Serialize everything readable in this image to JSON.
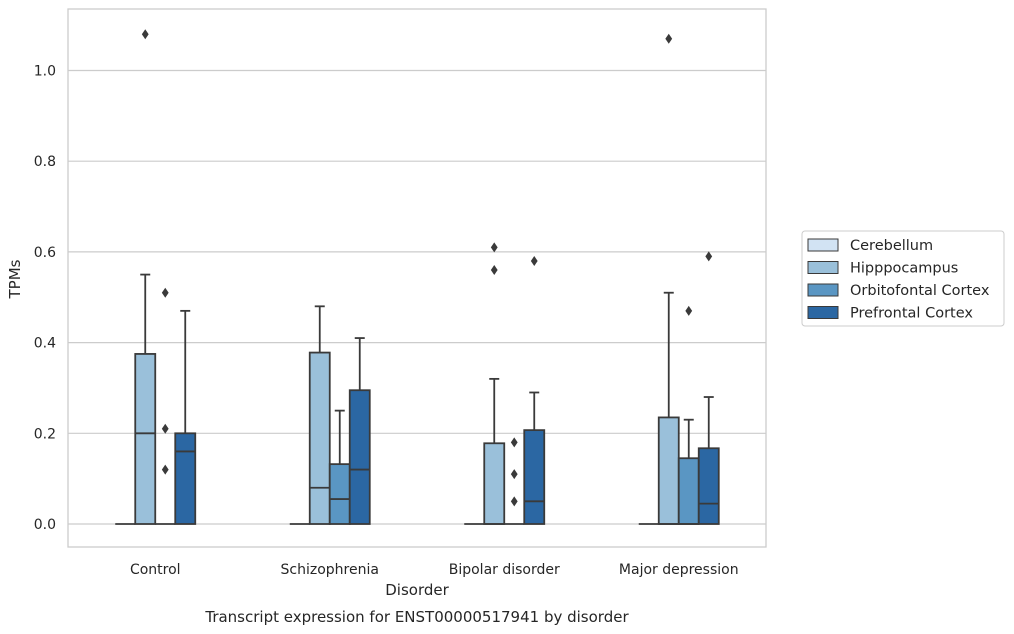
{
  "chart_data": {
    "type": "box",
    "caption": "Transcript expression for ENST00000517941 by disorder",
    "xlabel": "Disorder",
    "ylabel": "TPMs",
    "ylim": [
      -0.05,
      1.14
    ],
    "yticks": [
      0.0,
      0.2,
      0.4,
      0.6,
      0.8,
      1.0
    ],
    "ytick_labels": [
      "0.0",
      "0.2",
      "0.4",
      "0.6",
      "0.8",
      "1.0"
    ],
    "grid": "horizontal",
    "legend_position": "right",
    "categories": [
      "Control",
      "Schizophrenia",
      "Bipolar disorder",
      "Major depression"
    ],
    "series": [
      {
        "name": "Cerebellum",
        "color": "#d2e3f3",
        "boxes": [
          {
            "whislo": 0.0,
            "q1": 0.0,
            "med": 0.0,
            "q3": 0.0,
            "whishi": 0.0,
            "fliers": []
          },
          {
            "whislo": 0.0,
            "q1": 0.0,
            "med": 0.0,
            "q3": 0.0,
            "whishi": 0.0,
            "fliers": []
          },
          {
            "whislo": 0.0,
            "q1": 0.0,
            "med": 0.0,
            "q3": 0.0,
            "whishi": 0.0,
            "fliers": []
          },
          {
            "whislo": 0.0,
            "q1": 0.0,
            "med": 0.0,
            "q3": 0.0,
            "whishi": 0.0,
            "fliers": []
          }
        ]
      },
      {
        "name": "Hipppocampus",
        "color": "#9ac0da",
        "boxes": [
          {
            "whislo": 0.0,
            "q1": 0.0,
            "med": 0.2,
            "q3": 0.375,
            "whishi": 0.55,
            "fliers": [
              1.08
            ]
          },
          {
            "whislo": 0.0,
            "q1": 0.0,
            "med": 0.08,
            "q3": 0.378,
            "whishi": 0.48,
            "fliers": []
          },
          {
            "whislo": 0.0,
            "q1": 0.0,
            "med": 0.0,
            "q3": 0.178,
            "whishi": 0.32,
            "fliers": [
              0.56,
              0.61
            ]
          },
          {
            "whislo": 0.0,
            "q1": 0.0,
            "med": 0.0,
            "q3": 0.235,
            "whishi": 0.51,
            "fliers": [
              1.07
            ]
          }
        ]
      },
      {
        "name": "Orbitofontal Cortex",
        "color": "#5a96c3",
        "boxes": [
          {
            "whislo": 0.0,
            "q1": 0.0,
            "med": 0.0,
            "q3": 0.0,
            "whishi": 0.0,
            "fliers": [
              0.12,
              0.21,
              0.51
            ]
          },
          {
            "whislo": 0.0,
            "q1": 0.0,
            "med": 0.055,
            "q3": 0.132,
            "whishi": 0.25,
            "fliers": []
          },
          {
            "whislo": 0.0,
            "q1": 0.0,
            "med": 0.0,
            "q3": 0.0,
            "whishi": 0.0,
            "fliers": [
              0.05,
              0.11,
              0.18
            ]
          },
          {
            "whislo": 0.0,
            "q1": 0.0,
            "med": 0.0,
            "q3": 0.145,
            "whishi": 0.23,
            "fliers": [
              0.47
            ]
          }
        ]
      },
      {
        "name": "Prefrontal Cortex",
        "color": "#2b67a3",
        "boxes": [
          {
            "whislo": 0.0,
            "q1": 0.0,
            "med": 0.16,
            "q3": 0.2,
            "whishi": 0.47,
            "fliers": []
          },
          {
            "whislo": 0.0,
            "q1": 0.0,
            "med": 0.12,
            "q3": 0.295,
            "whishi": 0.41,
            "fliers": []
          },
          {
            "whislo": 0.0,
            "q1": 0.0,
            "med": 0.05,
            "q3": 0.207,
            "whishi": 0.29,
            "fliers": [
              0.58
            ]
          },
          {
            "whislo": 0.0,
            "q1": 0.0,
            "med": 0.045,
            "q3": 0.167,
            "whishi": 0.28,
            "fliers": [
              0.59
            ]
          }
        ]
      }
    ],
    "outlier_positions_note": "",
    "colors": {
      "grid": "#cccccc",
      "spine": "#cccccc",
      "stroke": "#3a3a3a"
    }
  }
}
